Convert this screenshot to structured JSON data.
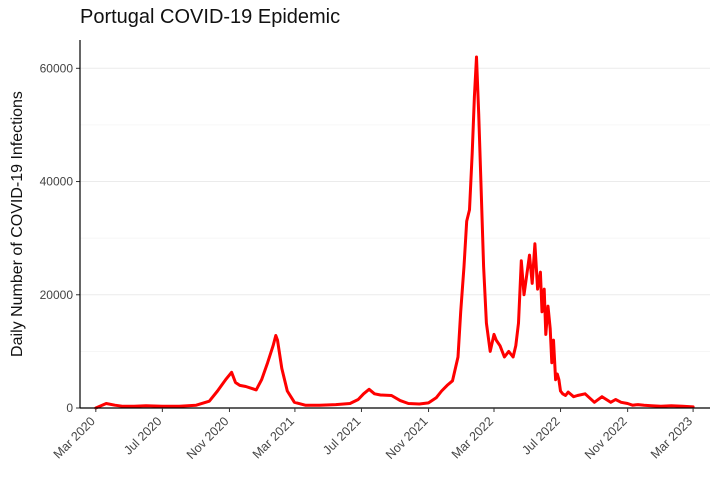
{
  "chart_data": {
    "type": "line",
    "title": "Portugal COVID-19 Epidemic",
    "xlabel": "",
    "ylabel": "Daily Number of COVID-19 Infections",
    "x_ticks": [
      "Mar 2020",
      "Jul 2020",
      "Nov 2020",
      "Mar 2021",
      "Jul 2021",
      "Nov 2021",
      "Mar 2022",
      "Jul 2022",
      "Nov 2022",
      "Mar 2023"
    ],
    "y_ticks": [
      0,
      20000,
      40000,
      60000
    ],
    "xlim": [
      "2020-02-01",
      "2023-04-01"
    ],
    "ylim": [
      0,
      65000
    ],
    "grid": "horizontal",
    "line_color": "#ff0000",
    "series": [
      {
        "x": [
          "2020-03-01",
          "2020-03-20",
          "2020-04-05",
          "2020-04-20",
          "2020-05-10",
          "2020-06-01",
          "2020-07-01",
          "2020-08-01",
          "2020-09-01",
          "2020-09-25",
          "2020-10-10",
          "2020-10-25",
          "2020-11-05",
          "2020-11-12",
          "2020-11-20",
          "2020-12-01",
          "2020-12-20",
          "2020-12-30",
          "2021-01-10",
          "2021-01-20",
          "2021-01-25",
          "2021-01-28",
          "2021-02-05",
          "2021-02-15",
          "2021-02-28",
          "2021-03-20",
          "2021-04-15",
          "2021-05-15",
          "2021-06-10",
          "2021-06-25",
          "2021-07-05",
          "2021-07-15",
          "2021-07-25",
          "2021-08-05",
          "2021-08-25",
          "2021-09-10",
          "2021-09-25",
          "2021-10-15",
          "2021-11-01",
          "2021-11-15",
          "2021-11-25",
          "2021-12-05",
          "2021-12-15",
          "2021-12-25",
          "2021-12-30",
          "2022-01-05",
          "2022-01-10",
          "2022-01-15",
          "2022-01-20",
          "2022-01-24",
          "2022-01-28",
          "2022-02-01",
          "2022-02-05",
          "2022-02-10",
          "2022-02-15",
          "2022-02-22",
          "2022-03-01",
          "2022-03-05",
          "2022-03-12",
          "2022-03-20",
          "2022-03-28",
          "2022-04-05",
          "2022-04-10",
          "2022-04-15",
          "2022-04-20",
          "2022-04-25",
          "2022-05-05",
          "2022-05-10",
          "2022-05-15",
          "2022-05-20",
          "2022-05-25",
          "2022-05-28",
          "2022-06-01",
          "2022-06-04",
          "2022-06-08",
          "2022-06-12",
          "2022-06-15",
          "2022-06-18",
          "2022-06-22",
          "2022-06-25",
          "2022-06-28",
          "2022-07-01",
          "2022-07-05",
          "2022-07-10",
          "2022-07-15",
          "2022-07-20",
          "2022-07-25",
          "2022-08-01",
          "2022-08-15",
          "2022-09-01",
          "2022-09-15",
          "2022-10-01",
          "2022-10-10",
          "2022-10-20",
          "2022-11-01",
          "2022-11-10",
          "2022-11-20",
          "2022-12-01",
          "2022-12-15",
          "2023-01-01",
          "2023-01-20",
          "2023-02-10",
          "2023-03-01"
        ],
        "y": [
          0,
          800,
          500,
          300,
          300,
          400,
          300,
          300,
          500,
          1200,
          3000,
          5000,
          6300,
          4500,
          4000,
          3800,
          3200,
          5000,
          8000,
          11000,
          12800,
          12000,
          7000,
          3000,
          1000,
          500,
          500,
          600,
          800,
          1500,
          2500,
          3300,
          2500,
          2300,
          2200,
          1300,
          800,
          700,
          900,
          1800,
          3000,
          4000,
          4800,
          9000,
          17000,
          25000,
          33000,
          35000,
          45000,
          55000,
          62000,
          52000,
          40000,
          25000,
          15000,
          10000,
          13000,
          12000,
          11000,
          9000,
          10000,
          9000,
          11000,
          15000,
          26000,
          20000,
          27000,
          22000,
          29000,
          21000,
          24000,
          17000,
          21000,
          13000,
          18000,
          14000,
          8000,
          12000,
          5000,
          6000,
          5000,
          3000,
          2500,
          2200,
          2800,
          2400,
          2000,
          2200,
          2500,
          1000,
          2000,
          1000,
          1500,
          1000,
          800,
          500,
          600,
          500,
          400,
          300,
          400,
          300,
          200
        ]
      }
    ]
  }
}
